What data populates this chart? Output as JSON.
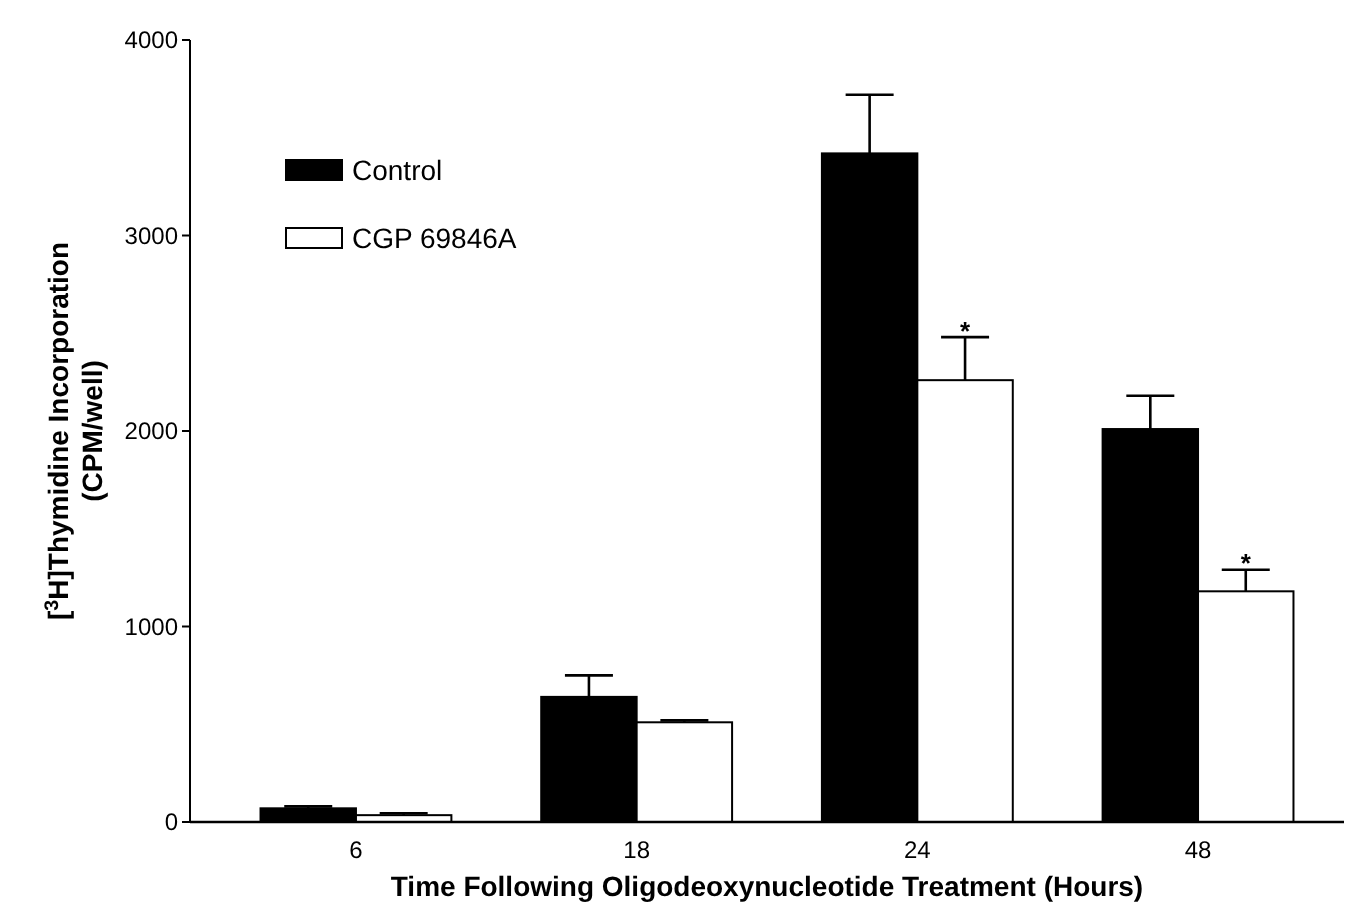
{
  "chart_data": {
    "type": "bar",
    "xlabel": "Time Following Oligodeoxynucleotide Treatment (Hours)",
    "ylabel": "[$^{3}$H]Thymidine Incorporation\n(CPM/well)",
    "categories": [
      "6",
      "18",
      "24",
      "48"
    ],
    "series": [
      {
        "name": "Control",
        "color": "#000000",
        "values": [
          70,
          640,
          3420,
          2010
        ],
        "errors": [
          10,
          110,
          300,
          170
        ]
      },
      {
        "name": "CGP 69846A",
        "color": "#ffffff",
        "values": [
          35,
          510,
          2260,
          1180
        ],
        "errors": [
          10,
          10,
          220,
          110
        ]
      }
    ],
    "ylim": [
      0,
      4000
    ],
    "yticks": [
      0,
      1000,
      2000,
      3000,
      4000
    ],
    "grid": false,
    "legend": "top left",
    "annotations": [
      {
        "text": "*",
        "x": "24",
        "y": 2560
      },
      {
        "text": "*",
        "x": "48",
        "y": 1370
      }
    ]
  }
}
